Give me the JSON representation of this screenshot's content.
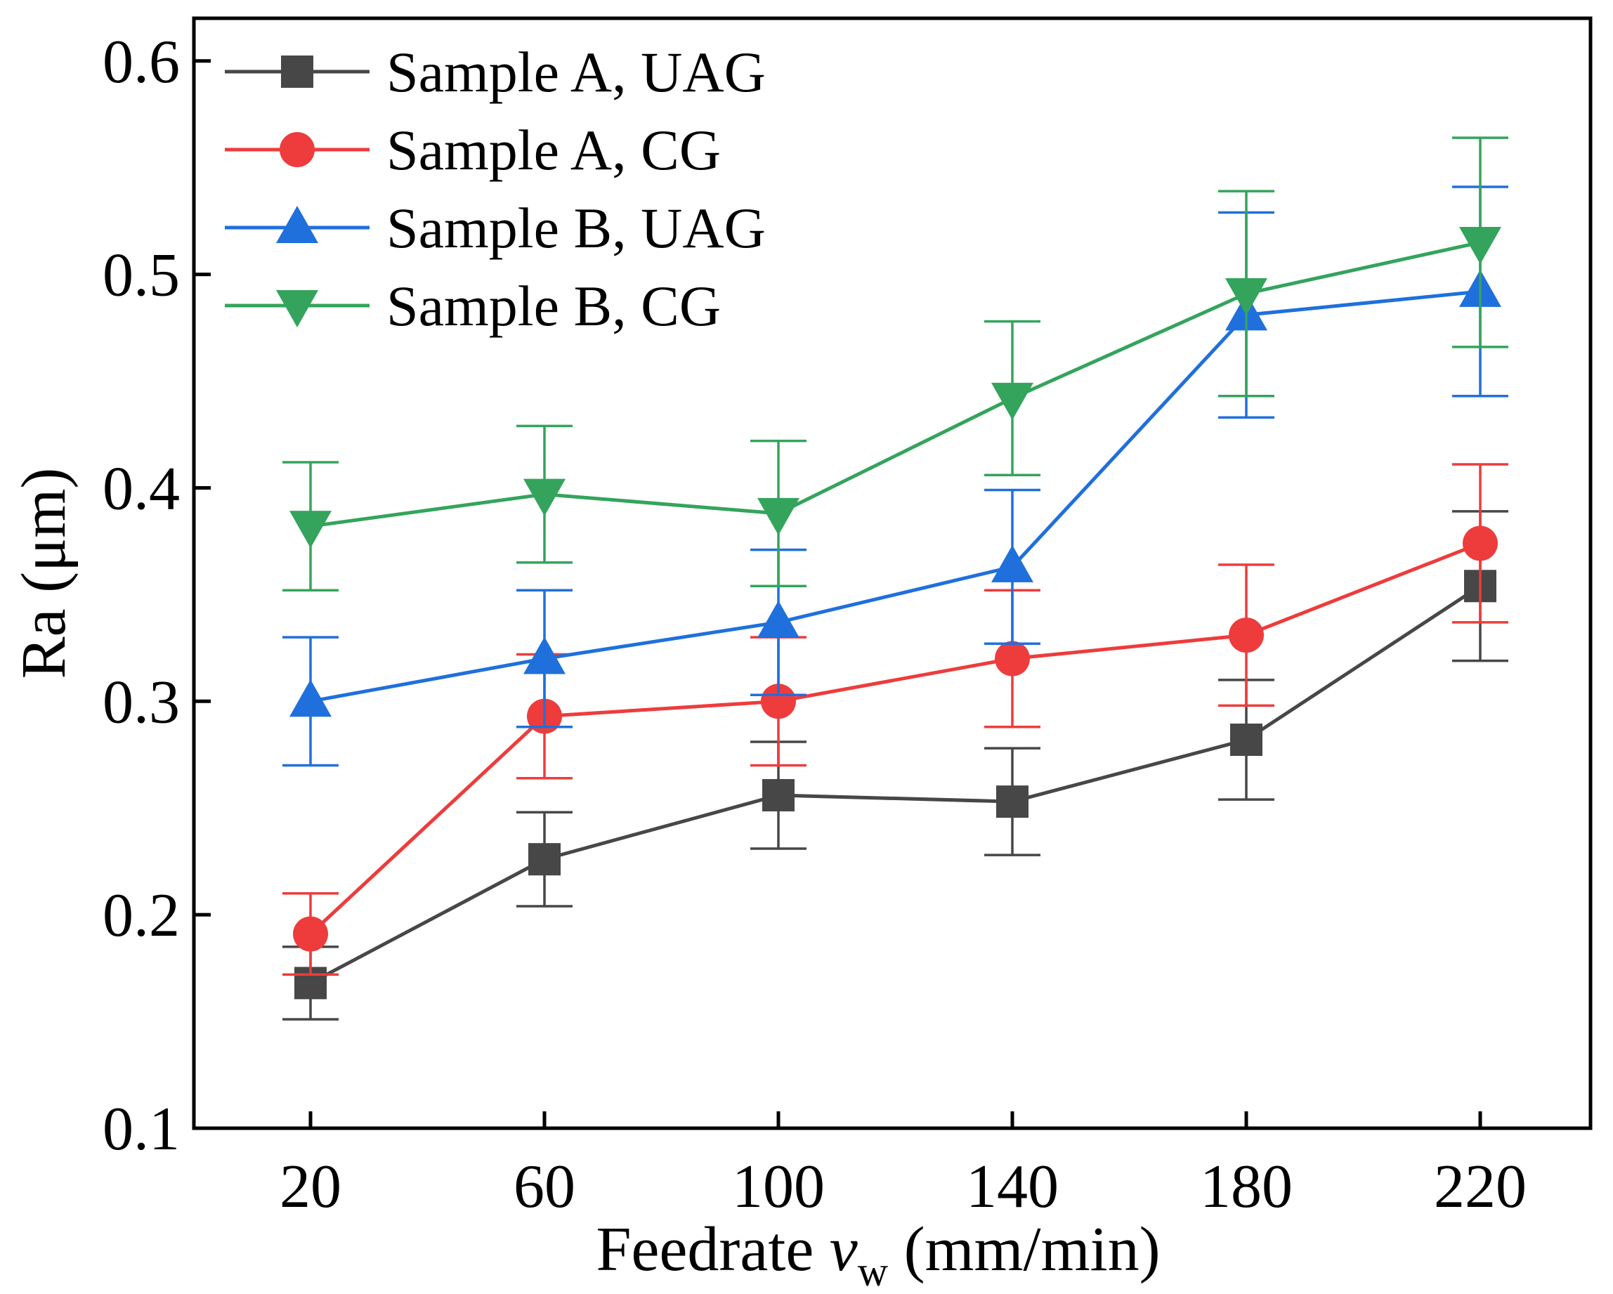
{
  "chart_data": {
    "type": "line",
    "title": "",
    "xlabel": {
      "main": "Feedrate ",
      "var": "v",
      "sub": "w",
      "unit": " (mm/min)"
    },
    "ylabel": "Ra (μm)",
    "categories": [
      20,
      60,
      100,
      140,
      180,
      220
    ],
    "x_tick_labels": [
      "20",
      "60",
      "100",
      "140",
      "180",
      "220"
    ],
    "ylim": [
      0.1,
      0.62
    ],
    "y_ticks": [
      0.1,
      0.2,
      0.3,
      0.4,
      0.5,
      0.6
    ],
    "y_tick_labels": [
      "0.1",
      "0.2",
      "0.3",
      "0.4",
      "0.5",
      "0.6"
    ],
    "grid": false,
    "legend_position": "top-left",
    "series": [
      {
        "name": "Sample A, UAG",
        "color": "#474747",
        "marker": "square",
        "values": [
          0.168,
          0.226,
          0.256,
          0.253,
          0.282,
          0.354
        ],
        "errors": [
          0.017,
          0.022,
          0.025,
          0.025,
          0.028,
          0.035
        ]
      },
      {
        "name": "Sample A, CG",
        "color": "#ee3b3b",
        "marker": "circle",
        "values": [
          0.191,
          0.293,
          0.3,
          0.32,
          0.331,
          0.374
        ],
        "errors": [
          0.019,
          0.029,
          0.03,
          0.032,
          0.033,
          0.037
        ]
      },
      {
        "name": "Sample B, UAG",
        "color": "#1f6fdc",
        "marker": "triangle-up",
        "values": [
          0.3,
          0.32,
          0.337,
          0.363,
          0.481,
          0.492
        ],
        "errors": [
          0.03,
          0.032,
          0.034,
          0.036,
          0.048,
          0.049
        ]
      },
      {
        "name": "Sample B, CG",
        "color": "#34a45c",
        "marker": "triangle-down",
        "values": [
          0.382,
          0.397,
          0.388,
          0.442,
          0.491,
          0.515
        ],
        "errors": [
          0.03,
          0.032,
          0.034,
          0.036,
          0.048,
          0.049
        ]
      }
    ]
  }
}
